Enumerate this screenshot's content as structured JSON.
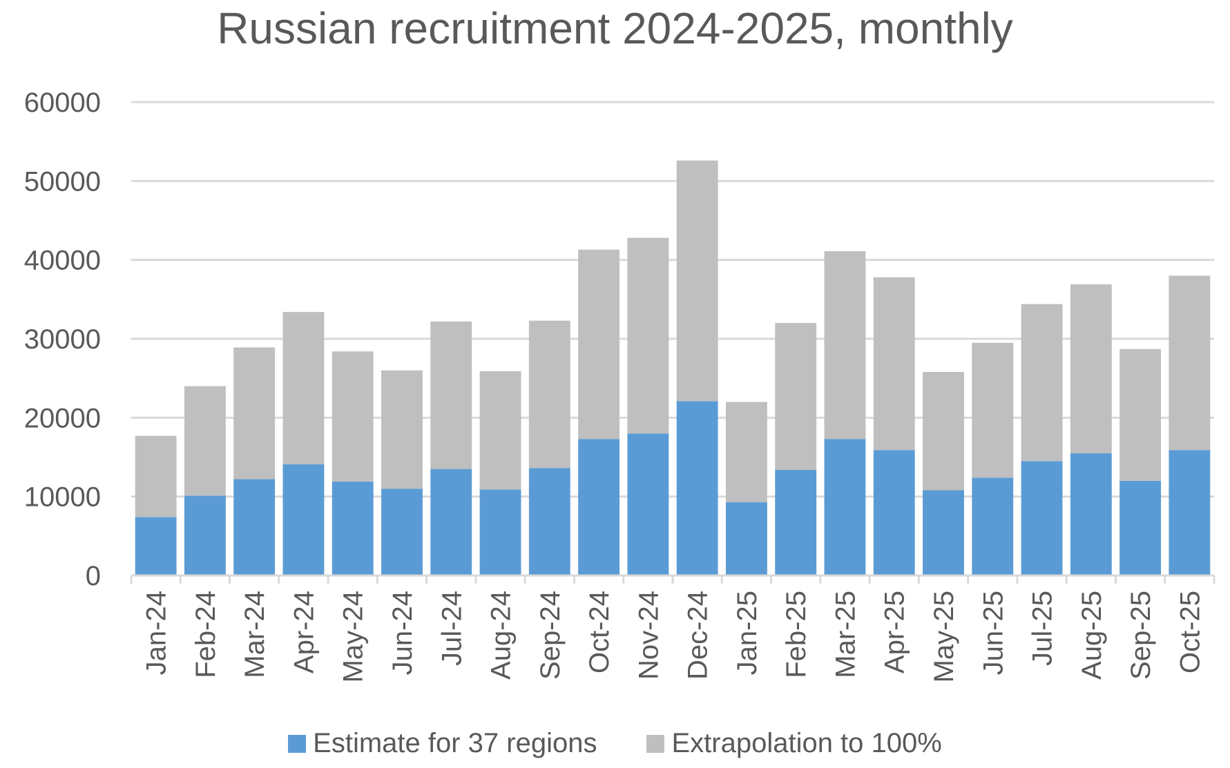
{
  "chart_data": {
    "type": "bar",
    "stacked": true,
    "title": "Russian recruitment 2024-2025, monthly",
    "xlabel": "",
    "ylabel": "",
    "ylim": [
      0,
      60000
    ],
    "yticks": [
      "0",
      "10000",
      "20000",
      "30000",
      "40000",
      "50000",
      "60000"
    ],
    "grid": true,
    "legend_position": "bottom",
    "categories": [
      "Jan-24",
      "Feb-24",
      "Mar-24",
      "Apr-24",
      "May-24",
      "Jun-24",
      "Jul-24",
      "Aug-24",
      "Sep-24",
      "Oct-24",
      "Nov-24",
      "Dec-24",
      "Jan-25",
      "Feb-25",
      "Mar-25",
      "Apr-25",
      "May-25",
      "Jun-25",
      "Jul-25",
      "Aug-25",
      "Sep-25",
      "Oct-25"
    ],
    "series": [
      {
        "name": "Estimate for 37 regions",
        "color": "#5B9BD5",
        "values": [
          7400,
          10100,
          12200,
          14100,
          11900,
          11000,
          13500,
          10900,
          13600,
          17300,
          18000,
          22100,
          9300,
          13400,
          17300,
          15900,
          10800,
          12400,
          14500,
          15500,
          12000,
          15900
        ]
      },
      {
        "name": "Extrapolation to 100%",
        "color": "#BFBFBF",
        "values": [
          10300,
          13900,
          16700,
          19300,
          16500,
          15000,
          18700,
          15000,
          18700,
          24000,
          24800,
          30500,
          12700,
          18600,
          23800,
          21900,
          15000,
          17100,
          19900,
          21400,
          16700,
          22100
        ]
      }
    ],
    "axis_color": "#D9D9D9",
    "text_color": "#595959"
  }
}
